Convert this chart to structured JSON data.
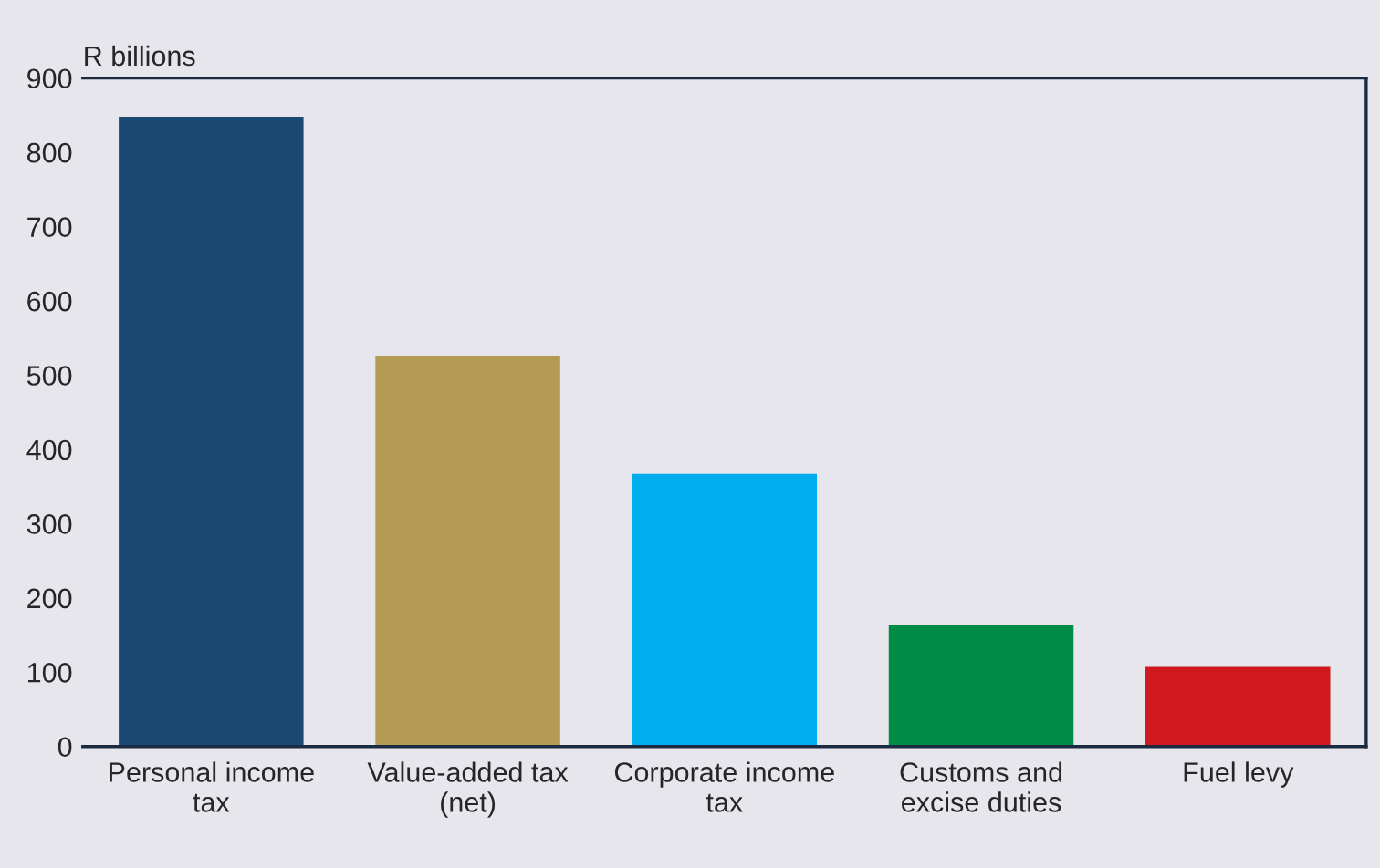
{
  "chart_data": {
    "type": "bar",
    "ylabel": "R billions",
    "categories": [
      "Personal income tax",
      "Value-added tax (net)",
      "Corporate income tax",
      "Customs and excise duties",
      "Fuel levy"
    ],
    "values": [
      848,
      525,
      367,
      163,
      107
    ],
    "colors": [
      "#1a4a73",
      "#b39a55",
      "#00aeef",
      "#008c45",
      "#d0191e"
    ],
    "ylim": [
      0,
      900
    ],
    "yticks": [
      0,
      100,
      200,
      300,
      400,
      500,
      600,
      700,
      800,
      900
    ],
    "grid": false,
    "legend": false
  }
}
